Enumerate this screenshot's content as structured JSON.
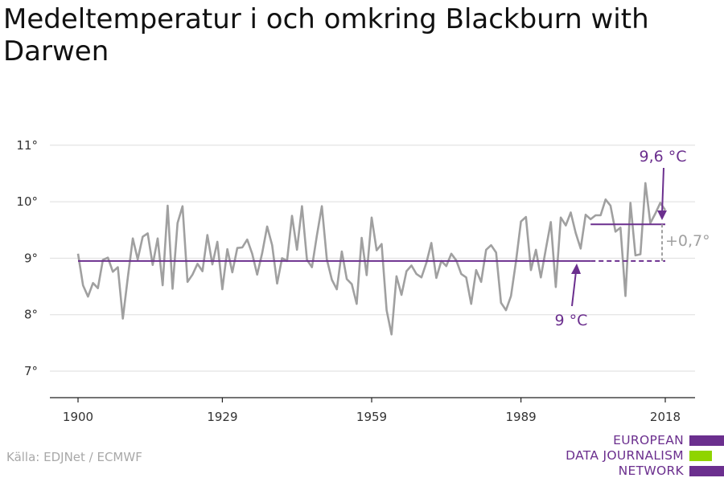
{
  "chart_data": {
    "type": "line",
    "title": "Medeltemperatur i och omkring Blackburn with Darwen",
    "x_ticks": [
      "1900",
      "1929",
      "1959",
      "1989",
      "2018"
    ],
    "y_ticks": [
      "7°",
      "8°",
      "9°",
      "10°",
      "11°"
    ],
    "y_tick_values": [
      7,
      8,
      9,
      10,
      11
    ],
    "xlim": [
      1900,
      2018
    ],
    "ylim": [
      6.5,
      11.3
    ],
    "grid": true,
    "series": [
      {
        "x": [
          1900,
          1901,
          1902,
          1903,
          1904,
          1905,
          1906,
          1907,
          1908,
          1909,
          1910,
          1911,
          1912,
          1913,
          1914,
          1915,
          1916,
          1917,
          1918,
          1919,
          1920,
          1921,
          1922,
          1923,
          1924,
          1925,
          1926,
          1927,
          1928,
          1929,
          1930,
          1931,
          1932,
          1933,
          1934,
          1935,
          1936,
          1937,
          1938,
          1939,
          1940,
          1941,
          1942,
          1943,
          1944,
          1945,
          1946,
          1947,
          1948,
          1949,
          1950,
          1951,
          1952,
          1953,
          1954,
          1955,
          1956,
          1957,
          1958,
          1959,
          1960,
          1961,
          1962,
          1963,
          1964,
          1965,
          1966,
          1967,
          1968,
          1969,
          1970,
          1971,
          1972,
          1973,
          1974,
          1975,
          1976,
          1977,
          1978,
          1979,
          1980,
          1981,
          1982,
          1983,
          1984,
          1985,
          1986,
          1987,
          1988,
          1989,
          1990,
          1991,
          1992,
          1993,
          1994,
          1995,
          1996,
          1997,
          1998,
          1999,
          2000,
          2001,
          2002,
          2003,
          2004,
          2005,
          2006,
          2007,
          2008,
          2009,
          2010,
          2011,
          2012,
          2013,
          2014,
          2015,
          2016,
          2017,
          2018
        ],
        "values": [
          9.08,
          8.52,
          8.32,
          8.56,
          8.47,
          8.97,
          9.01,
          8.76,
          8.84,
          7.93,
          8.66,
          9.35,
          8.98,
          9.38,
          9.44,
          8.88,
          9.35,
          8.52,
          9.93,
          8.46,
          9.62,
          9.92,
          8.58,
          8.71,
          8.9,
          8.77,
          9.41,
          8.89,
          9.29,
          8.45,
          9.16,
          8.75,
          9.18,
          9.19,
          9.33,
          9.08,
          8.71,
          9.09,
          9.56,
          9.23,
          8.55,
          9.0,
          8.95,
          9.75,
          9.15,
          9.92,
          8.97,
          8.84,
          9.4,
          9.92,
          8.98,
          8.62,
          8.45,
          9.12,
          8.63,
          8.54,
          8.19,
          9.36,
          8.7,
          9.72,
          9.14,
          9.25,
          8.08,
          7.65,
          8.68,
          8.35,
          8.77,
          8.87,
          8.72,
          8.66,
          8.92,
          9.27,
          8.65,
          8.95,
          8.86,
          9.08,
          8.96,
          8.72,
          8.66,
          8.19,
          8.79,
          8.58,
          9.15,
          9.23,
          9.1,
          8.21,
          8.08,
          8.33,
          8.94,
          9.65,
          9.73,
          8.79,
          9.15,
          8.66,
          9.16,
          9.64,
          8.49,
          9.72,
          9.58,
          9.81,
          9.45,
          9.17,
          9.77,
          9.69,
          9.76,
          9.76,
          10.04,
          9.93,
          9.47,
          9.54,
          8.33,
          9.98,
          9.05,
          9.07,
          10.33,
          9.62,
          9.79,
          9.98,
          9.85
        ]
      }
    ],
    "reference_lines": [
      {
        "label": "9 °C",
        "value": 8.95,
        "x_start": 1900,
        "x_end": 2018
      },
      {
        "label": "9,6 °C",
        "value": 9.6,
        "x_start": 2003,
        "x_end": 2018
      }
    ],
    "difference_label": "+0,7°",
    "colors": {
      "line": "#a0a0a0",
      "accent": "#6b2f8e",
      "grid": "#dddddd",
      "axis": "#222222",
      "diff": "#a0a0a0"
    }
  },
  "source": "Källa: EDJNet / ECMWF",
  "logo": {
    "line1": "EUROPEAN",
    "line2": "DATA JOURNALISM",
    "line3": "NETWORK",
    "colors": {
      "purple": "#6b2f8e",
      "green": "#8fd400"
    }
  }
}
